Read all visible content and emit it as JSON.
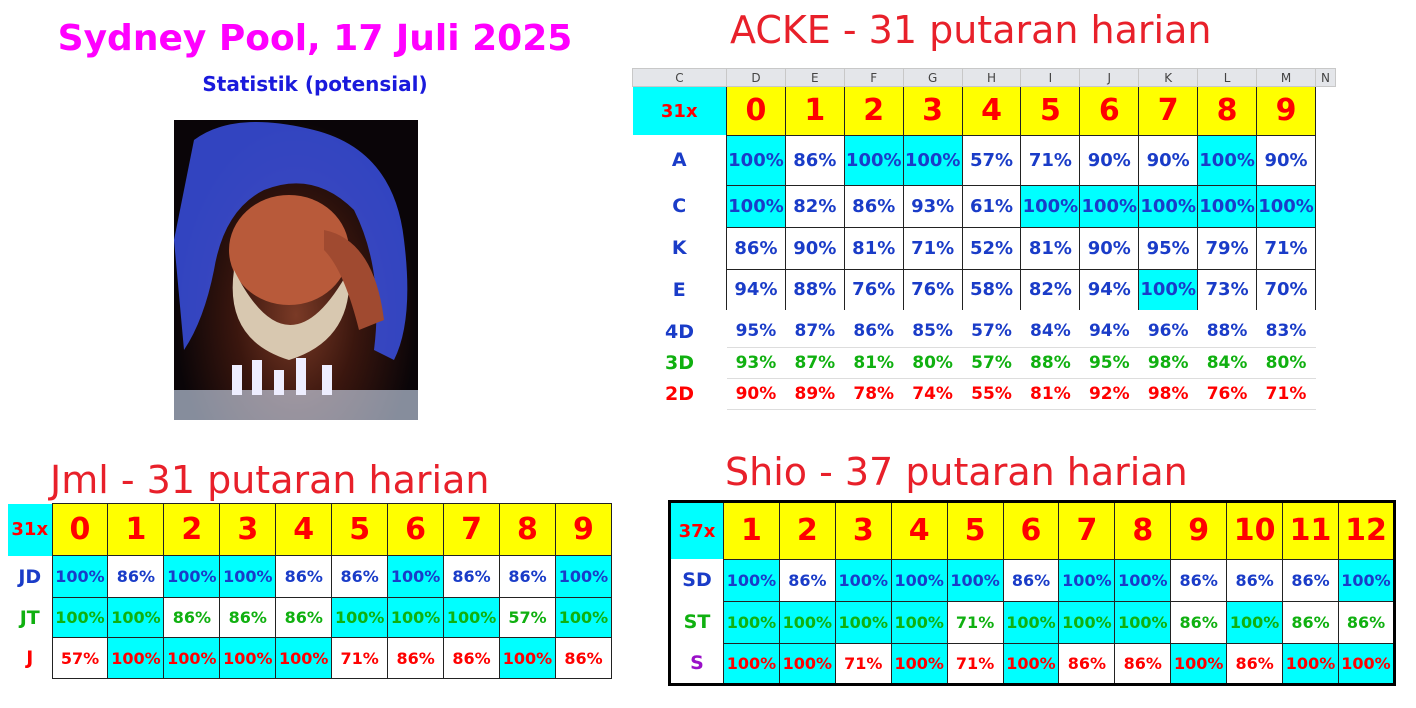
{
  "title": "Sydney Pool, 17 Juli 2025",
  "subtitle": "Statistik (potensial)",
  "colors": {
    "highlight": "#00ffff",
    "header": "#ffff00",
    "red": "#ff0000",
    "blue": "#1a3cc8",
    "green": "#10b010",
    "purple": "#9a10c8"
  },
  "acke": {
    "heading": "ACKE - 31 putaran harian",
    "sheet_cols": [
      "C",
      "D",
      "E",
      "F",
      "G",
      "H",
      "I",
      "J",
      "K",
      "L",
      "M",
      "N"
    ],
    "corner": "31x",
    "headers": [
      "0",
      "1",
      "2",
      "3",
      "4",
      "5",
      "6",
      "7",
      "8",
      "9"
    ],
    "rows": [
      {
        "label": "A",
        "values": [
          "100%",
          "86%",
          "100%",
          "100%",
          "57%",
          "71%",
          "90%",
          "90%",
          "100%",
          "90%"
        ]
      },
      {
        "label": "C",
        "values": [
          "100%",
          "82%",
          "86%",
          "93%",
          "61%",
          "100%",
          "100%",
          "100%",
          "100%",
          "100%"
        ]
      },
      {
        "label": "K",
        "values": [
          "86%",
          "90%",
          "81%",
          "71%",
          "52%",
          "81%",
          "90%",
          "95%",
          "79%",
          "71%"
        ]
      },
      {
        "label": "E",
        "values": [
          "94%",
          "88%",
          "76%",
          "76%",
          "58%",
          "82%",
          "94%",
          "100%",
          "73%",
          "70%"
        ]
      }
    ],
    "summary": [
      {
        "label": "4D",
        "color": "blue",
        "values": [
          "95%",
          "87%",
          "86%",
          "85%",
          "57%",
          "84%",
          "94%",
          "96%",
          "88%",
          "83%"
        ]
      },
      {
        "label": "3D",
        "color": "green",
        "values": [
          "93%",
          "87%",
          "81%",
          "80%",
          "57%",
          "88%",
          "95%",
          "98%",
          "84%",
          "80%"
        ]
      },
      {
        "label": "2D",
        "color": "red",
        "values": [
          "90%",
          "89%",
          "78%",
          "74%",
          "55%",
          "81%",
          "92%",
          "98%",
          "76%",
          "71%"
        ]
      }
    ]
  },
  "jml": {
    "heading": "Jml - 31 putaran  harian",
    "corner": "31x",
    "headers": [
      "0",
      "1",
      "2",
      "3",
      "4",
      "5",
      "6",
      "7",
      "8",
      "9"
    ],
    "rows": [
      {
        "label": "JD",
        "color": "blue",
        "values": [
          "100%",
          "86%",
          "100%",
          "100%",
          "86%",
          "86%",
          "100%",
          "86%",
          "86%",
          "100%"
        ]
      },
      {
        "label": "JT",
        "color": "green",
        "values": [
          "100%",
          "100%",
          "86%",
          "86%",
          "86%",
          "100%",
          "100%",
          "100%",
          "57%",
          "100%"
        ]
      },
      {
        "label": "J",
        "color": "red",
        "values": [
          "57%",
          "100%",
          "100%",
          "100%",
          "100%",
          "71%",
          "86%",
          "86%",
          "100%",
          "86%"
        ]
      }
    ]
  },
  "shio": {
    "heading": "Shio - 37 putaran harian",
    "corner": "37x",
    "headers": [
      "1",
      "2",
      "3",
      "4",
      "5",
      "6",
      "7",
      "8",
      "9",
      "10",
      "11",
      "12"
    ],
    "rows": [
      {
        "label": "SD",
        "color": "blue",
        "values": [
          "100%",
          "86%",
          "100%",
          "100%",
          "100%",
          "86%",
          "100%",
          "100%",
          "86%",
          "86%",
          "86%",
          "100%"
        ]
      },
      {
        "label": "ST",
        "color": "green",
        "values": [
          "100%",
          "100%",
          "100%",
          "100%",
          "71%",
          "100%",
          "100%",
          "100%",
          "86%",
          "100%",
          "86%",
          "86%"
        ]
      },
      {
        "label": "S",
        "color": "red",
        "label_color": "purple",
        "values": [
          "100%",
          "100%",
          "71%",
          "100%",
          "71%",
          "100%",
          "86%",
          "86%",
          "100%",
          "86%",
          "100%",
          "100%"
        ]
      }
    ]
  }
}
